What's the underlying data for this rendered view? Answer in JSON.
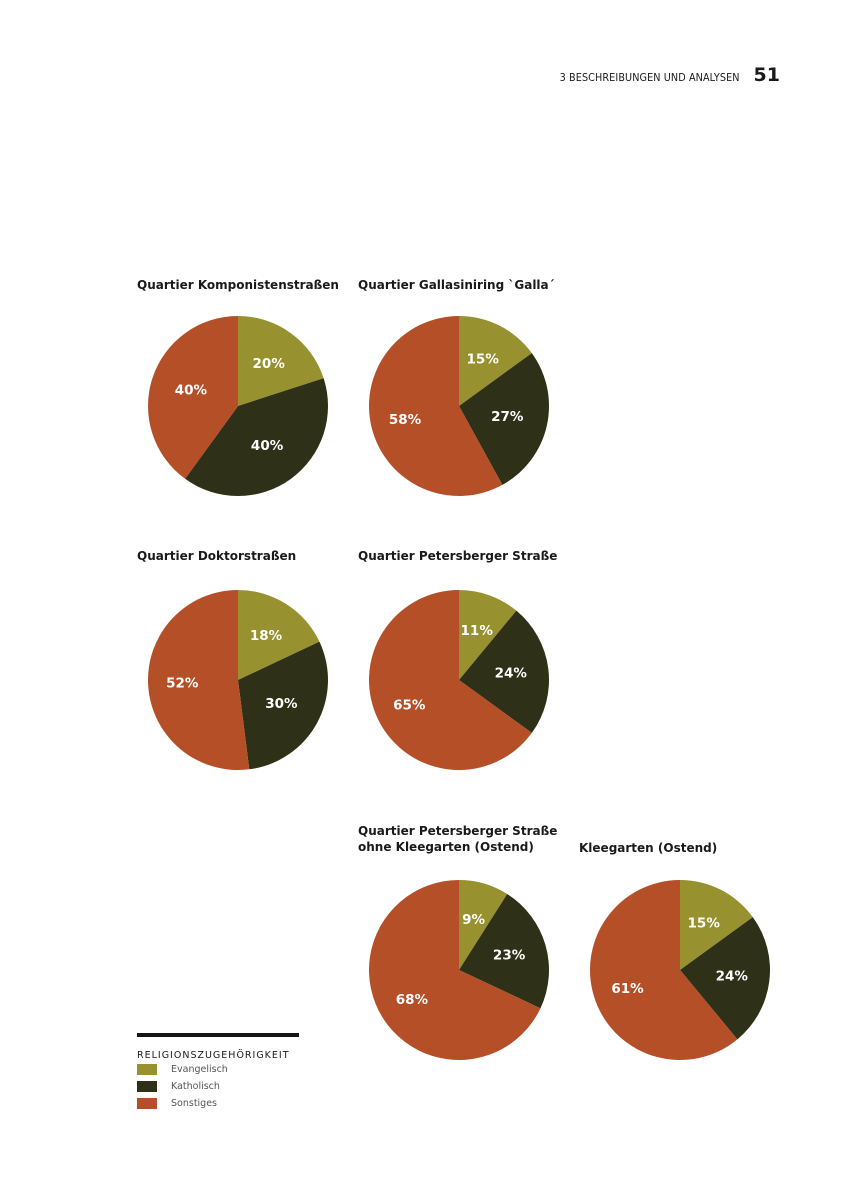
{
  "header": {
    "section": "3 BESCHREIBUNGEN UND ANALYSEN",
    "page_number": "51"
  },
  "colors": {
    "evangelisch": "#97912f",
    "katholisch": "#2f3018",
    "sonstiges": "#b54f28",
    "label_text": "#ffffff"
  },
  "legend": {
    "title": "RELIGIONSZUGEHÖRIGKEIT",
    "items": [
      {
        "label": "Evangelisch",
        "color": "#97912f"
      },
      {
        "label": "Katholisch",
        "color": "#2f3018"
      },
      {
        "label": "Sonstiges",
        "color": "#b54f28"
      }
    ]
  },
  "chart_data": [
    {
      "type": "pie",
      "title_lines": [
        "Quartier Komponistenstraßen"
      ],
      "categories": [
        "Evangelisch",
        "Katholisch",
        "Sonstiges"
      ],
      "values": [
        20,
        40,
        40
      ],
      "labels": [
        "20%",
        "40%",
        "40%"
      ]
    },
    {
      "type": "pie",
      "title_lines": [
        "Quartier Gallasiniring `Galla´"
      ],
      "categories": [
        "Evangelisch",
        "Katholisch",
        "Sonstiges"
      ],
      "values": [
        15,
        27,
        58
      ],
      "labels": [
        "15%",
        "27%",
        "58%"
      ]
    },
    {
      "type": "pie",
      "title_lines": [
        "Quartier Doktorstraßen"
      ],
      "categories": [
        "Evangelisch",
        "Katholisch",
        "Sonstiges"
      ],
      "values": [
        18,
        30,
        52
      ],
      "labels": [
        "18%",
        "30%",
        "52%"
      ]
    },
    {
      "type": "pie",
      "title_lines": [
        "Quartier Petersberger Straße"
      ],
      "categories": [
        "Evangelisch",
        "Katholisch",
        "Sonstiges"
      ],
      "values": [
        11,
        24,
        65
      ],
      "labels": [
        "11%",
        "24%",
        "65%"
      ]
    },
    {
      "type": "pie",
      "title_lines": [
        "Quartier Petersberger Straße",
        "ohne Kleegarten (Ostend)"
      ],
      "categories": [
        "Evangelisch",
        "Katholisch",
        "Sonstiges"
      ],
      "values": [
        9,
        23,
        68
      ],
      "labels": [
        "9%",
        "23%",
        "68%"
      ]
    },
    {
      "type": "pie",
      "title_lines": [
        "Kleegarten (Ostend)"
      ],
      "categories": [
        "Evangelisch",
        "Katholisch",
        "Sonstiges"
      ],
      "values": [
        15,
        24,
        61
      ],
      "labels": [
        "15%",
        "24%",
        "61%"
      ]
    }
  ]
}
